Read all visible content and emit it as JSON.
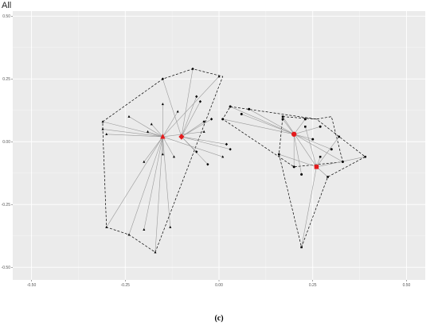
{
  "panel_title": "All",
  "caption": "(c)",
  "colors": {
    "panel_background": "#ebebeb",
    "grid_major": "#ffffff",
    "point": "#000000",
    "centroid": "#e41a1c",
    "spoke": "#9a9a9a",
    "hull": "#000000"
  },
  "chart_data": {
    "type": "scatter",
    "title": "",
    "xlabel": "",
    "ylabel": "",
    "xlim": [
      -0.55,
      0.55
    ],
    "ylim": [
      -0.55,
      0.52
    ],
    "x_ticks": [
      -0.5,
      -0.25,
      0.0,
      0.25,
      0.5
    ],
    "x_tick_labels": [
      "-0.50",
      "-0.25",
      "0.00",
      "0.25",
      "0.50"
    ],
    "y_ticks": [
      0.5,
      0.25,
      0.0,
      -0.25,
      -0.5
    ],
    "y_tick_labels": [
      "0.50",
      "0.25",
      "0.00",
      "-0.25",
      "-0.50"
    ],
    "grid": true,
    "legend": "none",
    "groups": [
      {
        "shape": "triangle",
        "centroid": [
          -0.15,
          0.02
        ],
        "points": [
          [
            -0.31,
            0.08
          ],
          [
            -0.31,
            0.05
          ],
          [
            -0.3,
            0.03
          ],
          [
            -0.24,
            0.1
          ],
          [
            -0.18,
            0.07
          ],
          [
            -0.15,
            0.15
          ],
          [
            -0.11,
            0.12
          ],
          [
            -0.19,
            0.04
          ],
          [
            -0.12,
            -0.06
          ],
          [
            -0.04,
            0.04
          ],
          [
            -0.15,
            -0.05
          ],
          [
            -0.2,
            -0.08
          ],
          [
            -0.3,
            -0.34
          ],
          [
            -0.24,
            -0.37
          ],
          [
            -0.17,
            -0.44
          ],
          [
            -0.2,
            -0.35
          ],
          [
            -0.13,
            -0.34
          ],
          [
            0.01,
            -0.06
          ],
          [
            0.0,
            0.26
          ]
        ],
        "hull": [
          [
            -0.31,
            0.08
          ],
          [
            -0.15,
            0.25
          ],
          [
            -0.07,
            0.29
          ],
          [
            0.01,
            0.26
          ],
          [
            -0.17,
            -0.44
          ],
          [
            -0.24,
            -0.37
          ],
          [
            -0.3,
            -0.34
          ],
          [
            -0.31,
            0.05
          ]
        ]
      },
      {
        "shape": "diamond",
        "centroid": [
          -0.1,
          0.02
        ],
        "points": [
          [
            -0.15,
            0.25
          ],
          [
            -0.07,
            0.29
          ],
          [
            -0.06,
            0.18
          ],
          [
            -0.05,
            0.16
          ],
          [
            -0.04,
            0.08
          ],
          [
            -0.02,
            0.09
          ],
          [
            -0.06,
            -0.04
          ],
          [
            -0.03,
            -0.09
          ],
          [
            0.03,
            -0.03
          ],
          [
            0.02,
            -0.01
          ]
        ],
        "hull": []
      },
      {
        "shape": "circle",
        "centroid": [
          0.2,
          0.03
        ],
        "points": [
          [
            0.03,
            0.14
          ],
          [
            0.01,
            0.09
          ],
          [
            0.06,
            0.11
          ],
          [
            0.08,
            0.13
          ],
          [
            0.17,
            0.09
          ],
          [
            0.23,
            0.09
          ],
          [
            0.27,
            0.06
          ],
          [
            0.25,
            0.01
          ],
          [
            0.3,
            -0.03
          ],
          [
            0.33,
            -0.08
          ],
          [
            0.2,
            -0.1
          ],
          [
            0.22,
            -0.13
          ]
        ],
        "hull": [
          [
            0.03,
            0.14
          ],
          [
            0.26,
            0.09
          ],
          [
            0.3,
            0.1
          ],
          [
            0.33,
            -0.08
          ],
          [
            0.2,
            -0.1
          ],
          [
            0.01,
            0.09
          ]
        ]
      },
      {
        "shape": "square",
        "centroid": [
          0.26,
          -0.1
        ],
        "points": [
          [
            0.17,
            0.1
          ],
          [
            0.16,
            -0.05
          ],
          [
            0.22,
            -0.42
          ],
          [
            0.29,
            -0.14
          ],
          [
            0.32,
            0.02
          ],
          [
            0.39,
            -0.06
          ],
          [
            0.23,
            0.06
          ],
          [
            0.27,
            -0.06
          ]
        ],
        "hull": [
          [
            0.17,
            0.1
          ],
          [
            0.26,
            0.09
          ],
          [
            0.39,
            -0.06
          ],
          [
            0.29,
            -0.14
          ],
          [
            0.22,
            -0.42
          ],
          [
            0.16,
            -0.05
          ]
        ]
      }
    ]
  }
}
